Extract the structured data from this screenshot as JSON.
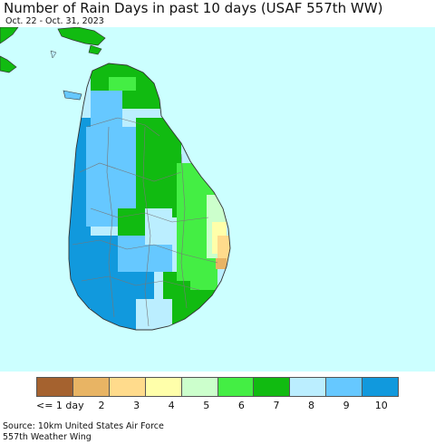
{
  "title": "Number of Rain Days in past 10 days (USAF 557th WW)",
  "subtitle": "Oct. 22 - Oct. 31, 2023",
  "legend": {
    "colors": [
      "#a5622f",
      "#e8b464",
      "#ffdb8c",
      "#ffffaa",
      "#ccffcc",
      "#44ee44",
      "#11bb11",
      "#bbeeff",
      "#66c8ff",
      "#1199dd"
    ],
    "labels": [
      "<= 1 day",
      "2",
      "3",
      "4",
      "5",
      "6",
      "7",
      "8",
      "9",
      "10"
    ]
  },
  "source": {
    "line1": "Source: 10km United States Air Force",
    "line2": "557th Weather Wing"
  }
}
